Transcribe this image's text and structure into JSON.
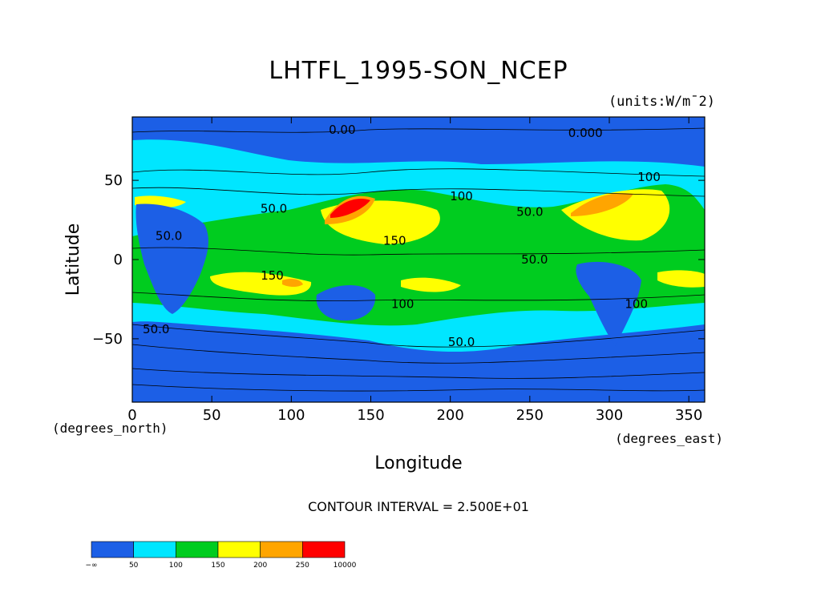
{
  "chart_data": {
    "type": "heatmap",
    "title": "LHTFL_1995-SON_NCEP",
    "units": "(units:W/m¯2)",
    "xlabel": "Longitude",
    "ylabel": "Latitude",
    "x_unit_label": "(degrees_east)",
    "y_unit_label": "(degrees_north)",
    "xlim": [
      0,
      360
    ],
    "ylim": [
      -90,
      90
    ],
    "x_ticks": [
      0,
      50,
      100,
      150,
      200,
      250,
      300,
      350
    ],
    "y_ticks": [
      50,
      0,
      -50
    ],
    "y_tick_labels": [
      "50",
      "0",
      "−50"
    ],
    "contour_interval": "CONTOUR INTERVAL = 2.500E+01",
    "contour_labels": [
      {
        "text": "0.00",
        "lon": 132,
        "lat": 82
      },
      {
        "text": "0.000",
        "lon": 285,
        "lat": 80
      },
      {
        "text": "50.0",
        "lon": 89,
        "lat": 32
      },
      {
        "text": "50.0",
        "lon": 23,
        "lat": 15
      },
      {
        "text": "100",
        "lon": 207,
        "lat": 40
      },
      {
        "text": "50.0",
        "lon": 250,
        "lat": 30
      },
      {
        "text": "100",
        "lon": 325,
        "lat": 52
      },
      {
        "text": "150",
        "lon": 165,
        "lat": 12
      },
      {
        "text": "50.0",
        "lon": 253,
        "lat": 0
      },
      {
        "text": "150",
        "lon": 88,
        "lat": -10
      },
      {
        "text": "100",
        "lon": 170,
        "lat": -28
      },
      {
        "text": "100",
        "lon": 317,
        "lat": -28
      },
      {
        "text": "50.0",
        "lon": 15,
        "lat": -44
      },
      {
        "text": "50.0",
        "lon": 207,
        "lat": -52
      }
    ],
    "legend": {
      "placement": "bottom-left",
      "bins": [
        {
          "from": "−∞",
          "to": "50",
          "color": "#1c5fe6"
        },
        {
          "from": "50",
          "to": "100",
          "color": "#00e6ff"
        },
        {
          "from": "100",
          "to": "150",
          "color": "#00cc1f"
        },
        {
          "from": "150",
          "to": "200",
          "color": "#ffff00"
        },
        {
          "from": "200",
          "to": "250",
          "color": "#ffa500"
        },
        {
          "from": "250",
          "to": "10000",
          "color": "#ff0000"
        }
      ],
      "tick_labels": [
        "−∞",
        "50",
        "100",
        "150",
        "200",
        "250",
        "10000"
      ]
    }
  }
}
